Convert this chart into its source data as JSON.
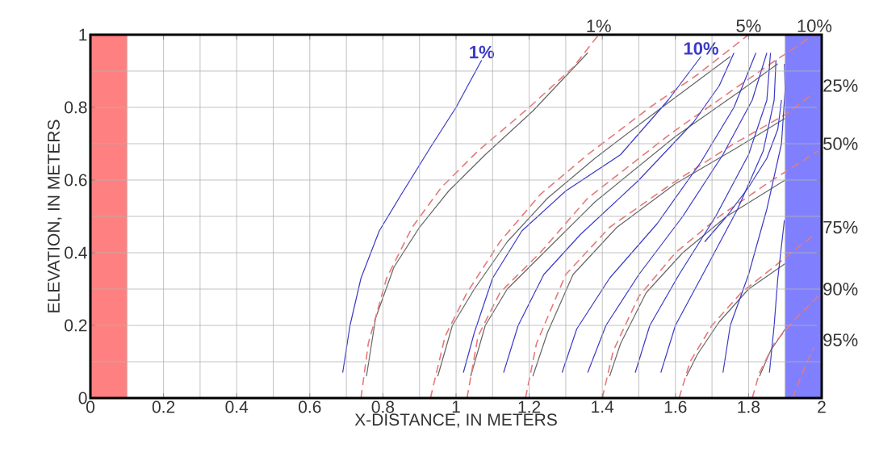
{
  "chart_data": {
    "type": "line",
    "xlabel": "X-DISTANCE, IN METERS",
    "ylabel": "ELEVATION, IN METERS",
    "xlim": [
      0,
      2
    ],
    "ylim": [
      0,
      1
    ],
    "xticks": [
      0,
      0.2,
      0.4,
      0.6,
      0.8,
      1,
      1.2,
      1.4,
      1.6,
      1.8,
      2
    ],
    "yticks": [
      0,
      0.2,
      0.4,
      0.6,
      0.8,
      1
    ],
    "grid": true,
    "bands": [
      {
        "axis": "x",
        "from": 0,
        "to": 0.1,
        "color": "#ff8080"
      },
      {
        "axis": "x",
        "from": 1.9,
        "to": 2,
        "color": "#8080ff"
      }
    ],
    "series": [
      {
        "color": "#666666",
        "line_style": "solid",
        "x": [
          0.755,
          0.78,
          0.83,
          0.9,
          0.98,
          1.08,
          1.21,
          1.36
        ],
        "values": [
          0.06,
          0.22,
          0.36,
          0.47,
          0.57,
          0.67,
          0.79,
          0.95
        ]
      },
      {
        "color": "#666666",
        "line_style": "solid",
        "x": [
          0.95,
          0.99,
          1.05,
          1.14,
          1.25,
          1.38,
          1.55,
          1.75
        ],
        "values": [
          0.06,
          0.2,
          0.3,
          0.43,
          0.55,
          0.66,
          0.79,
          0.94
        ]
      },
      {
        "color": "#666666",
        "line_style": "solid",
        "x": [
          1.04,
          1.08,
          1.14,
          1.25,
          1.38,
          1.6,
          1.77,
          1.88
        ],
        "values": [
          0.06,
          0.2,
          0.3,
          0.41,
          0.54,
          0.72,
          0.84,
          0.92
        ]
      },
      {
        "color": "#666666",
        "line_style": "solid",
        "x": [
          1.21,
          1.25,
          1.32,
          1.44,
          1.6,
          1.77,
          1.9
        ],
        "values": [
          0.06,
          0.18,
          0.34,
          0.47,
          0.59,
          0.69,
          0.77
        ]
      },
      {
        "color": "#666666",
        "line_style": "solid",
        "x": [
          1.42,
          1.45,
          1.52,
          1.62,
          1.74,
          1.9
        ],
        "values": [
          0.06,
          0.15,
          0.29,
          0.4,
          0.5,
          0.6
        ]
      },
      {
        "color": "#666666",
        "line_style": "solid",
        "x": [
          1.63,
          1.66,
          1.72,
          1.8,
          1.9
        ],
        "values": [
          0.06,
          0.12,
          0.21,
          0.3,
          0.37
        ]
      },
      {
        "color": "#666666",
        "line_style": "solid",
        "x": [
          1.83,
          1.86,
          1.9
        ],
        "values": [
          0.06,
          0.13,
          0.19
        ]
      },
      {
        "name": "1%",
        "color": "#e87878",
        "line_style": "dashed",
        "x": [
          0.74,
          0.76,
          0.81,
          0.88,
          0.96,
          1.06,
          1.2,
          1.32,
          1.39
        ],
        "values": [
          0,
          0.15,
          0.33,
          0.47,
          0.58,
          0.68,
          0.8,
          0.91,
          1
        ]
      },
      {
        "name": "5%",
        "color": "#e87878",
        "line_style": "dashed",
        "x": [
          0.93,
          0.97,
          1.03,
          1.12,
          1.23,
          1.36,
          1.53,
          1.66,
          1.8
        ],
        "values": [
          0,
          0.17,
          0.29,
          0.43,
          0.56,
          0.67,
          0.8,
          0.89,
          1
        ]
      },
      {
        "name": "10%",
        "color": "#e87878",
        "line_style": "dashed",
        "x": [
          1.03,
          1.06,
          1.12,
          1.23,
          1.36,
          1.59,
          1.76,
          1.86,
          1.98
        ],
        "values": [
          0,
          0.17,
          0.29,
          0.4,
          0.55,
          0.73,
          0.85,
          0.92,
          1
        ]
      },
      {
        "name": "25%",
        "color": "#e87878",
        "line_style": "dashed",
        "x": [
          1.19,
          1.22,
          1.3,
          1.42,
          1.59,
          1.76,
          1.9,
          1.98
        ],
        "values": [
          0,
          0.15,
          0.34,
          0.47,
          0.59,
          0.7,
          0.78,
          0.84
        ]
      },
      {
        "name": "50%",
        "color": "#e87878",
        "line_style": "dashed",
        "x": [
          1.4,
          1.43,
          1.5,
          1.6,
          1.72,
          1.85,
          1.99
        ],
        "values": [
          0,
          0.13,
          0.28,
          0.4,
          0.5,
          0.59,
          0.68
        ]
      },
      {
        "name": "75%",
        "color": "#e87878",
        "line_style": "dashed",
        "x": [
          1.61,
          1.64,
          1.7,
          1.78,
          1.88,
          1.98
        ],
        "values": [
          0,
          0.1,
          0.2,
          0.29,
          0.37,
          0.45
        ]
      },
      {
        "name": "90%",
        "color": "#e87878",
        "line_style": "dashed",
        "x": [
          1.81,
          1.83,
          1.87,
          1.93,
          1.99
        ],
        "values": [
          0,
          0.07,
          0.15,
          0.22,
          0.28
        ]
      },
      {
        "name": "95%",
        "color": "#e87878",
        "line_style": "dashed",
        "x": [
          1.92,
          1.94,
          1.96,
          1.98
        ],
        "values": [
          0,
          0.05,
          0.1,
          0.14
        ]
      },
      {
        "name": "1%",
        "color": "#3a3ac8",
        "line_style": "solid",
        "x": [
          0.69,
          0.71,
          0.74,
          0.79,
          0.85,
          0.93,
          1.0,
          1.07
        ],
        "values": [
          0.07,
          0.2,
          0.33,
          0.46,
          0.56,
          0.69,
          0.8,
          0.93
        ]
      },
      {
        "name": "10%",
        "color": "#3a3ac8",
        "line_style": "solid",
        "x": [
          1.02,
          1.05,
          1.1,
          1.18,
          1.3,
          1.45,
          1.58,
          1.67
        ],
        "values": [
          0.07,
          0.18,
          0.33,
          0.46,
          0.57,
          0.67,
          0.82,
          0.94
        ]
      },
      {
        "color": "#3a3ac8",
        "line_style": "solid",
        "x": [
          1.13,
          1.17,
          1.24,
          1.34,
          1.5,
          1.65,
          1.72,
          1.76
        ],
        "values": [
          0.07,
          0.2,
          0.34,
          0.45,
          0.6,
          0.76,
          0.86,
          0.95
        ]
      },
      {
        "color": "#3a3ac8",
        "line_style": "solid",
        "x": [
          1.29,
          1.33,
          1.42,
          1.55,
          1.67,
          1.76,
          1.82
        ],
        "values": [
          0.07,
          0.19,
          0.33,
          0.48,
          0.65,
          0.8,
          0.95
        ]
      },
      {
        "color": "#3a3ac8",
        "line_style": "solid",
        "x": [
          1.36,
          1.41,
          1.5,
          1.62,
          1.73,
          1.81,
          1.85
        ],
        "values": [
          0.07,
          0.2,
          0.34,
          0.5,
          0.67,
          0.82,
          0.95
        ]
      },
      {
        "color": "#3a3ac8",
        "line_style": "solid",
        "x": [
          1.49,
          1.53,
          1.61,
          1.71,
          1.8,
          1.85,
          1.86
        ],
        "values": [
          0.07,
          0.2,
          0.34,
          0.5,
          0.67,
          0.82,
          0.95
        ]
      },
      {
        "color": "#3a3ac8",
        "line_style": "solid",
        "x": [
          1.56,
          1.6,
          1.68,
          1.77,
          1.84,
          1.87,
          1.875
        ],
        "values": [
          0.07,
          0.2,
          0.35,
          0.52,
          0.68,
          0.82,
          0.93
        ]
      },
      {
        "color": "#3a3ac8",
        "line_style": "solid",
        "x": [
          1.68,
          1.74,
          1.8,
          1.85,
          1.88,
          1.89
        ],
        "values": [
          0.43,
          0.5,
          0.58,
          0.66,
          0.74,
          0.82
        ]
      },
      {
        "color": "#3a3ac8",
        "line_style": "solid",
        "x": [
          1.73,
          1.75,
          1.8,
          1.85,
          1.89,
          1.9,
          1.898
        ],
        "values": [
          0.07,
          0.2,
          0.34,
          0.52,
          0.7,
          0.85,
          0.92
        ]
      },
      {
        "color": "#3a3ac8",
        "line_style": "solid",
        "x": [
          1.857,
          1.87,
          1.88,
          1.898
        ],
        "values": [
          0.07,
          0.2,
          0.33,
          0.49
        ]
      }
    ]
  }
}
